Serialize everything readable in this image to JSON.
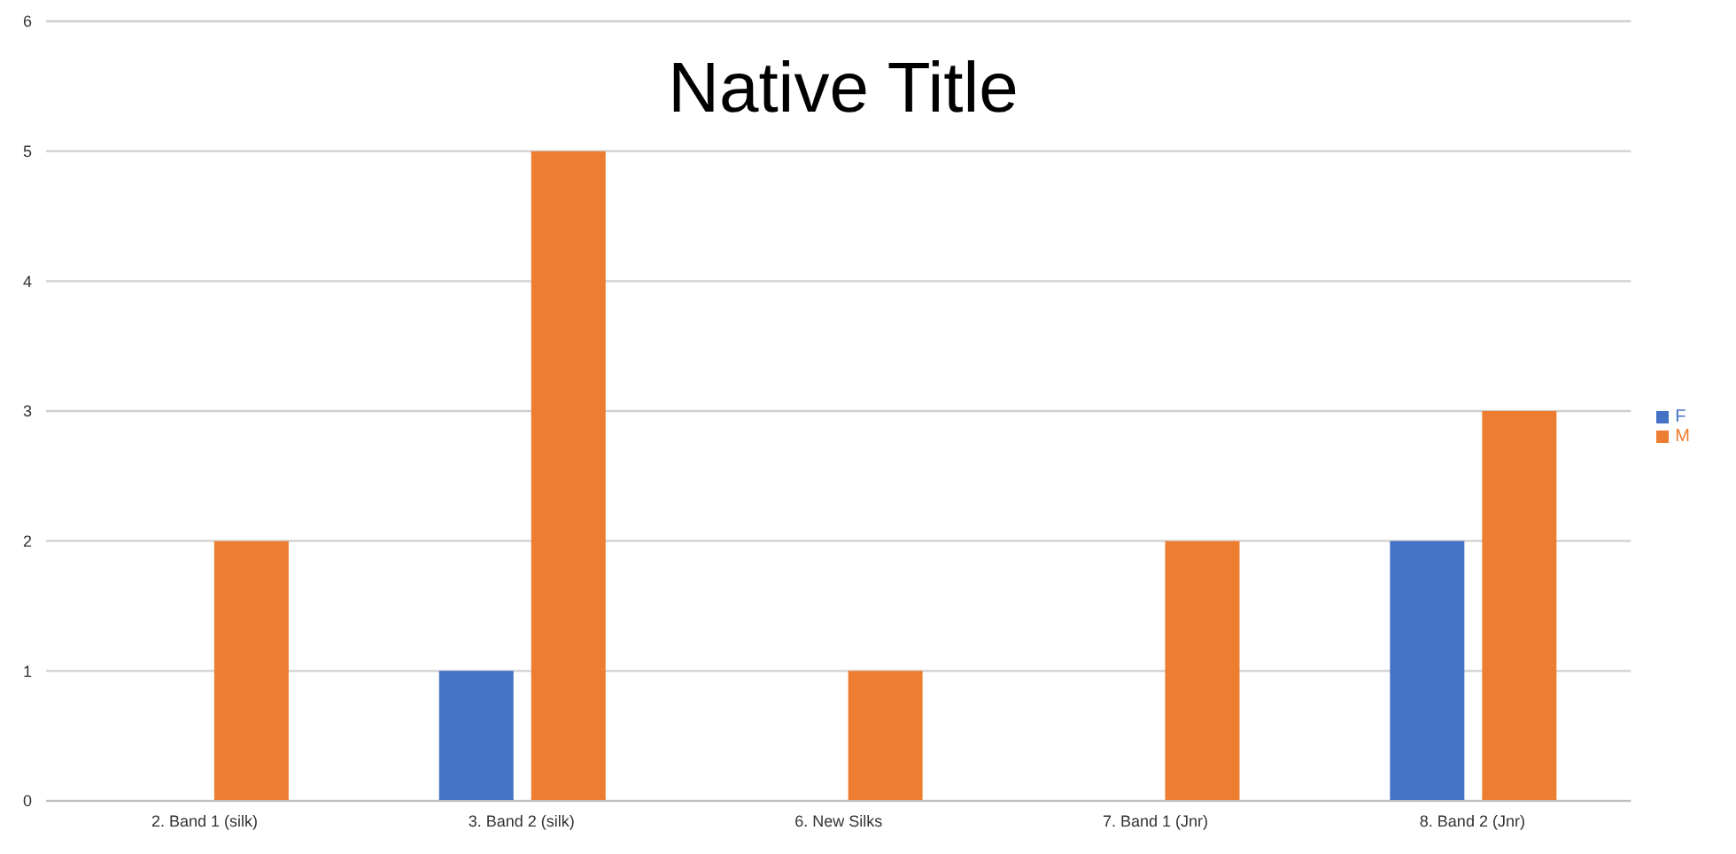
{
  "chart_data": {
    "type": "bar",
    "title": "Native Title",
    "categories": [
      "2. Band 1 (silk)",
      "3. Band 2 (silk)",
      "6. New Silks",
      "7. Band 1 (Jnr)",
      "8. Band 2 (Jnr)"
    ],
    "series": [
      {
        "name": "F",
        "color": "#4472c4",
        "values": [
          0,
          1,
          0,
          0,
          2
        ]
      },
      {
        "name": "M",
        "color": "#ed7d31",
        "values": [
          2,
          5,
          1,
          2,
          3
        ]
      }
    ],
    "ylim": [
      0,
      6
    ],
    "yticks": [
      0,
      1,
      2,
      3,
      4,
      5,
      6
    ],
    "grid": "y",
    "legend": "right"
  }
}
